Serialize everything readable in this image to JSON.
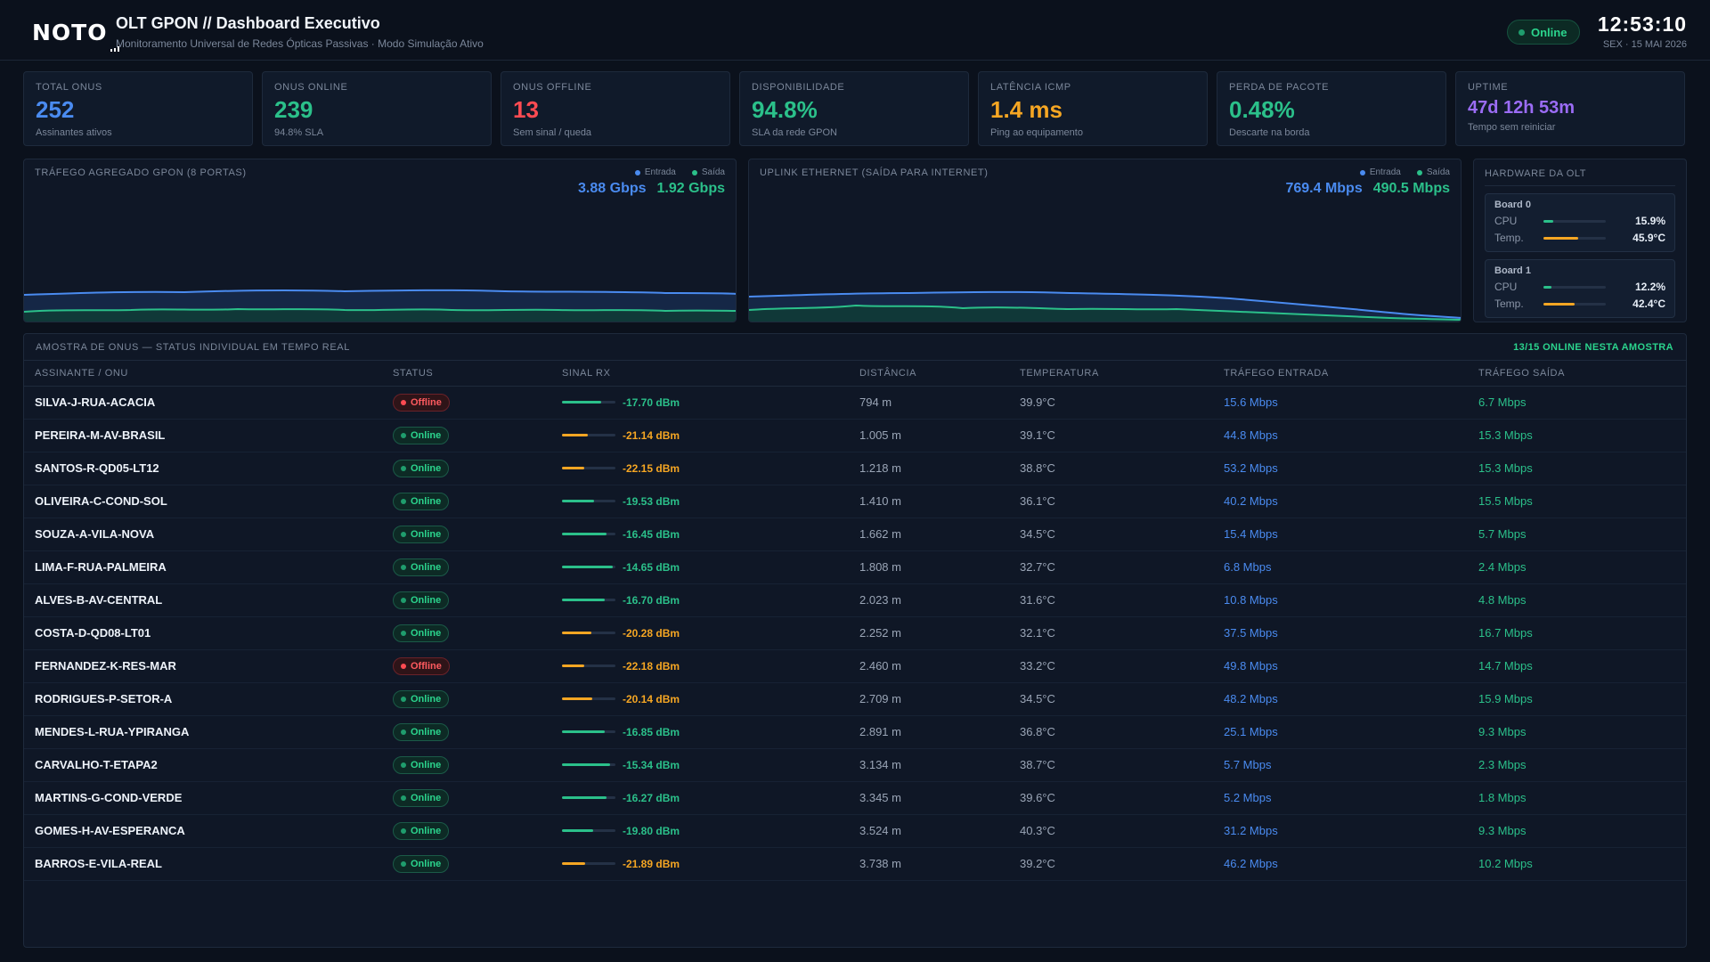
{
  "header": {
    "logo_text": "NOTO",
    "title": "OLT GPON // Dashboard Executivo",
    "subtitle": "Monitoramento Universal de Redes Ópticas Passivas · Modo Simulação Ativo",
    "status": "Online",
    "clock": "12:53:10",
    "date": "SEX · 15 MAI 2026"
  },
  "kpis": [
    {
      "label": "TOTAL ONUS",
      "value": "252",
      "sub": "Assinantes ativos",
      "color": "#4a8bf0"
    },
    {
      "label": "ONUS ONLINE",
      "value": "239",
      "sub": "94.8% SLA",
      "color": "#2bc08a"
    },
    {
      "label": "ONUS OFFLINE",
      "value": "13",
      "sub": "Sem sinal / queda",
      "color": "#ff4b52"
    },
    {
      "label": "DISPONIBILIDADE",
      "value": "94.8%",
      "sub": "SLA da rede GPON",
      "color": "#2bc08a"
    },
    {
      "label": "LATÊNCIA ICMP",
      "value": "1.4 ms",
      "sub": "Ping ao equipamento",
      "color": "#f5a623"
    },
    {
      "label": "PERDA DE PACOTE",
      "value": "0.48%",
      "sub": "Descarte na borda",
      "color": "#2bc08a"
    },
    {
      "label": "UPTIME",
      "value": "47d 12h 53m",
      "sub": "Tempo sem reiniciar",
      "color": "#9b6cf5"
    }
  ],
  "charts": {
    "gpon": {
      "title": "TRÁFEGO AGREGADO GPON (8 PORTAS)",
      "legend_in": "Entrada",
      "legend_out": "Saída",
      "value_in": "3.88 Gbps",
      "value_out": "1.92 Gbps"
    },
    "uplink": {
      "title": "UPLINK ETHERNET (SAÍDA PARA INTERNET)",
      "legend_in": "Entrada",
      "legend_out": "Saída",
      "value_in": "769.4 Mbps",
      "value_out": "490.5 Mbps"
    }
  },
  "hardware": {
    "title": "HARDWARE DA OLT",
    "boards": [
      {
        "name": "Board 0",
        "cpu_label": "CPU",
        "cpu": "15.9%",
        "cpu_pct": 15.9,
        "temp_label": "Temp.",
        "temp": "45.9°C",
        "temp_pct": 55
      },
      {
        "name": "Board 1",
        "cpu_label": "CPU",
        "cpu": "12.2%",
        "cpu_pct": 12.2,
        "temp_label": "Temp.",
        "temp": "42.4°C",
        "temp_pct": 50
      }
    ]
  },
  "table": {
    "title": "AMOSTRA DE ONUS — STATUS INDIVIDUAL EM TEMPO REAL",
    "count": "13/15 ONLINE NESTA AMOSTRA",
    "columns": [
      "ASSINANTE / ONU",
      "STATUS",
      "SINAL RX",
      "DISTÂNCIA",
      "TEMPERATURA",
      "TRÁFEGO ENTRADA",
      "TRÁFEGO SAÍDA"
    ],
    "rows": [
      {
        "name": "SILVA-J-RUA-ACACIA",
        "status": "Offline",
        "signal": "-17.70 dBm",
        "dist": "794 m",
        "temp": "39.9°C",
        "in": "15.6 Mbps",
        "out": "6.7 Mbps"
      },
      {
        "name": "PEREIRA-M-AV-BRASIL",
        "status": "Online",
        "signal": "-21.14 dBm",
        "dist": "1.005 m",
        "temp": "39.1°C",
        "in": "44.8 Mbps",
        "out": "15.3 Mbps"
      },
      {
        "name": "SANTOS-R-QD05-LT12",
        "status": "Online",
        "signal": "-22.15 dBm",
        "dist": "1.218 m",
        "temp": "38.8°C",
        "in": "53.2 Mbps",
        "out": "15.3 Mbps"
      },
      {
        "name": "OLIVEIRA-C-COND-SOL",
        "status": "Online",
        "signal": "-19.53 dBm",
        "dist": "1.410 m",
        "temp": "36.1°C",
        "in": "40.2 Mbps",
        "out": "15.5 Mbps"
      },
      {
        "name": "SOUZA-A-VILA-NOVA",
        "status": "Online",
        "signal": "-16.45 dBm",
        "dist": "1.662 m",
        "temp": "34.5°C",
        "in": "15.4 Mbps",
        "out": "5.7 Mbps"
      },
      {
        "name": "LIMA-F-RUA-PALMEIRA",
        "status": "Online",
        "signal": "-14.65 dBm",
        "dist": "1.808 m",
        "temp": "32.7°C",
        "in": "6.8 Mbps",
        "out": "2.4 Mbps"
      },
      {
        "name": "ALVES-B-AV-CENTRAL",
        "status": "Online",
        "signal": "-16.70 dBm",
        "dist": "2.023 m",
        "temp": "31.6°C",
        "in": "10.8 Mbps",
        "out": "4.8 Mbps"
      },
      {
        "name": "COSTA-D-QD08-LT01",
        "status": "Online",
        "signal": "-20.28 dBm",
        "dist": "2.252 m",
        "temp": "32.1°C",
        "in": "37.5 Mbps",
        "out": "16.7 Mbps"
      },
      {
        "name": "FERNANDEZ-K-RES-MAR",
        "status": "Offline",
        "signal": "-22.18 dBm",
        "dist": "2.460 m",
        "temp": "33.2°C",
        "in": "49.8 Mbps",
        "out": "14.7 Mbps"
      },
      {
        "name": "RODRIGUES-P-SETOR-A",
        "status": "Online",
        "signal": "-20.14 dBm",
        "dist": "2.709 m",
        "temp": "34.5°C",
        "in": "48.2 Mbps",
        "out": "15.9 Mbps"
      },
      {
        "name": "MENDES-L-RUA-YPIRANGA",
        "status": "Online",
        "signal": "-16.85 dBm",
        "dist": "2.891 m",
        "temp": "36.8°C",
        "in": "25.1 Mbps",
        "out": "9.3 Mbps"
      },
      {
        "name": "CARVALHO-T-ETAPA2",
        "status": "Online",
        "signal": "-15.34 dBm",
        "dist": "3.134 m",
        "temp": "38.7°C",
        "in": "5.7 Mbps",
        "out": "2.3 Mbps"
      },
      {
        "name": "MARTINS-G-COND-VERDE",
        "status": "Online",
        "signal": "-16.27 dBm",
        "dist": "3.345 m",
        "temp": "39.6°C",
        "in": "5.2 Mbps",
        "out": "1.8 Mbps"
      },
      {
        "name": "GOMES-H-AV-ESPERANCA",
        "status": "Online",
        "signal": "-19.80 dBm",
        "dist": "3.524 m",
        "temp": "40.3°C",
        "in": "31.2 Mbps",
        "out": "9.3 Mbps"
      },
      {
        "name": "BARROS-E-VILA-REAL",
        "status": "Online",
        "signal": "-21.89 dBm",
        "dist": "3.738 m",
        "temp": "39.2°C",
        "in": "46.2 Mbps",
        "out": "10.2 Mbps"
      }
    ]
  },
  "colors": {
    "blue": "#4a8bf0",
    "green": "#2bc08a",
    "orange": "#f5a623",
    "red": "#ff4b52",
    "purple": "#9b6cf5"
  }
}
